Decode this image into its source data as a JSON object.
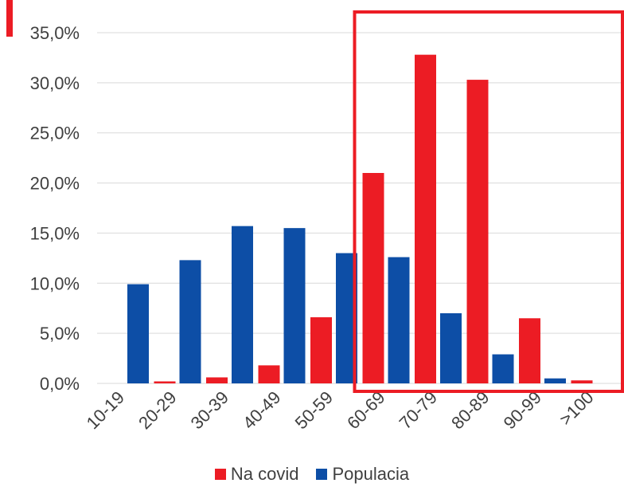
{
  "chart_data": {
    "type": "bar",
    "title": "",
    "xlabel": "",
    "ylabel": "",
    "ylim": [
      0,
      35
    ],
    "y_ticks": [
      "0,0%",
      "5,0%",
      "10,0%",
      "15,0%",
      "20,0%",
      "25,0%",
      "30,0%",
      "35,0%"
    ],
    "y_tick_values": [
      0,
      5,
      10,
      15,
      20,
      25,
      30,
      35
    ],
    "categories": [
      "10-19",
      "20-29",
      "30-39",
      "40-49",
      "50-59",
      "60-69",
      "70-79",
      "80-89",
      "90-99",
      ">100"
    ],
    "series": [
      {
        "name": "Na covid",
        "color": "#ec1c24",
        "values": [
          0.0,
          0.2,
          0.6,
          1.8,
          6.6,
          21.0,
          32.8,
          30.3,
          6.5,
          0.3
        ]
      },
      {
        "name": "Populacia",
        "color": "#0d4ea6",
        "values": [
          9.9,
          12.3,
          15.7,
          15.5,
          13.0,
          12.6,
          7.0,
          2.9,
          0.5,
          0.0
        ]
      }
    ],
    "grid": true,
    "legend_position": "bottom",
    "highlight": {
      "from_category": "60-69",
      "to_category": ">100",
      "color": "#ec1c24"
    }
  }
}
